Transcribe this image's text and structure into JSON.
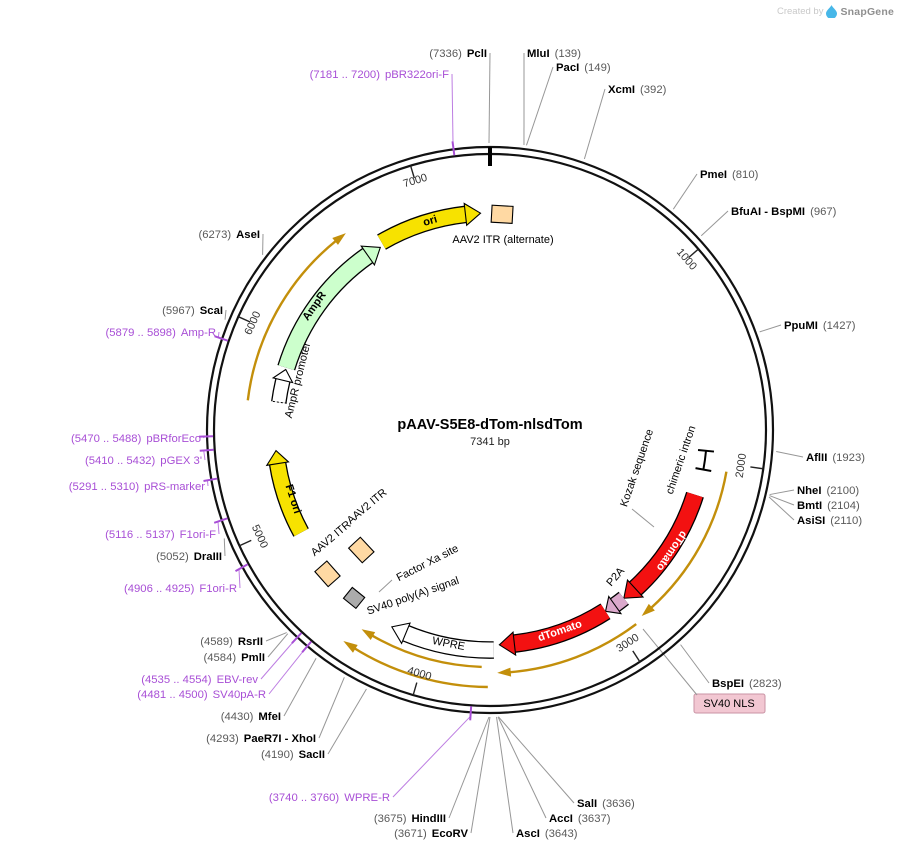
{
  "attribution": {
    "prefix": "Created by",
    "brand": "SnapGene"
  },
  "plasmid": {
    "name": "pAAV-S5E8-dTom-nlsdTom",
    "size": "7341 bp"
  },
  "axis_ticks": [
    "1000",
    "2000",
    "3000",
    "4000",
    "5000",
    "6000",
    "7000"
  ],
  "sites": [
    {
      "name": "PclI",
      "pos": "(7336)",
      "kind": "enzyme"
    },
    {
      "name": "MluI",
      "pos": "(139)",
      "kind": "enzyme"
    },
    {
      "name": "PacI",
      "pos": "(149)",
      "kind": "enzyme"
    },
    {
      "name": "XcmI",
      "pos": "(392)",
      "kind": "enzyme"
    },
    {
      "name": "PmeI",
      "pos": "(810)",
      "kind": "enzyme"
    },
    {
      "name": "BfuAI - BspMI",
      "pos": "(967)",
      "kind": "enzyme"
    },
    {
      "name": "PpuMI",
      "pos": "(1427)",
      "kind": "enzyme"
    },
    {
      "name": "AflII",
      "pos": "(1923)",
      "kind": "enzyme"
    },
    {
      "name": "NheI",
      "pos": "(2100)",
      "kind": "enzyme"
    },
    {
      "name": "BmtI",
      "pos": "(2104)",
      "kind": "enzyme"
    },
    {
      "name": "AsiSI",
      "pos": "(2110)",
      "kind": "enzyme"
    },
    {
      "name": "BspEI",
      "pos": "(2823)",
      "kind": "enzyme"
    },
    {
      "name": "SalI",
      "pos": "(3636)",
      "kind": "enzyme"
    },
    {
      "name": "AccI",
      "pos": "(3637)",
      "kind": "enzyme"
    },
    {
      "name": "AscI",
      "pos": "(3643)",
      "kind": "enzyme"
    },
    {
      "name": "EcoRV",
      "pos": "(3671)",
      "kind": "enzyme"
    },
    {
      "name": "HindIII",
      "pos": "(3675)",
      "kind": "enzyme"
    },
    {
      "name": "WPRE-R",
      "pos": "(3740 .. 3760)",
      "kind": "primer"
    },
    {
      "name": "SacII",
      "pos": "(4190)",
      "kind": "enzyme"
    },
    {
      "name": "PaeR7I - XhoI",
      "pos": "(4293)",
      "kind": "enzyme"
    },
    {
      "name": "MfeI",
      "pos": "(4430)",
      "kind": "enzyme"
    },
    {
      "name": "SV40pA-R",
      "pos": "(4481 .. 4500)",
      "kind": "primer"
    },
    {
      "name": "EBV-rev",
      "pos": "(4535 .. 4554)",
      "kind": "primer"
    },
    {
      "name": "PmlI",
      "pos": "(4584)",
      "kind": "enzyme"
    },
    {
      "name": "RsrII",
      "pos": "(4589)",
      "kind": "enzyme"
    },
    {
      "name": "F1ori-R",
      "pos": "(4906 .. 4925)",
      "kind": "primer"
    },
    {
      "name": "DraIII",
      "pos": "(5052)",
      "kind": "enzyme"
    },
    {
      "name": "F1ori-F",
      "pos": "(5116 .. 5137)",
      "kind": "primer"
    },
    {
      "name": "pRS-marker",
      "pos": "(5291 .. 5310)",
      "kind": "primer"
    },
    {
      "name": "pGEX 3'",
      "pos": "(5410 .. 5432)",
      "kind": "primer"
    },
    {
      "name": "pBRforEco",
      "pos": "(5470 .. 5488)",
      "kind": "primer"
    },
    {
      "name": "Amp-R",
      "pos": "(5879 .. 5898)",
      "kind": "primer"
    },
    {
      "name": "ScaI",
      "pos": "(5967)",
      "kind": "enzyme"
    },
    {
      "name": "AseI",
      "pos": "(6273)",
      "kind": "enzyme"
    },
    {
      "name": "pBR322ori-F",
      "pos": "(7181 .. 7200)",
      "kind": "primer"
    }
  ],
  "features": [
    {
      "label": "ori"
    },
    {
      "label": "AAV2 ITR (alternate)"
    },
    {
      "label": "AmpR"
    },
    {
      "label": "AmpR promoter"
    },
    {
      "label": "F1 ori"
    },
    {
      "label": "AAV2 ITR"
    },
    {
      "label": "AAV2 ITR"
    },
    {
      "label": "Factor Xa site"
    },
    {
      "label": "SV40 poly(A) signal"
    },
    {
      "label": "WPRE"
    },
    {
      "label": "dTomato"
    },
    {
      "label": "P2A"
    },
    {
      "label": "dTomato"
    },
    {
      "label": "chimeric intron"
    },
    {
      "label": "Kozak sequence"
    },
    {
      "label": "SV40 NLS"
    }
  ],
  "colors": {
    "enzyme_name": "#000000",
    "enzyme_pos": "#5a5a5a",
    "primer": "#a84fd6",
    "callout": "#979797",
    "primer_callout": "#bd7de2",
    "feature_yellow": "#f7e200",
    "feature_green": "#ccffcc",
    "feature_red": "#f31111",
    "feature_tan": "#ffd9a3",
    "feature_gray": "#ababab",
    "feature_plum": "#dba9cc",
    "nls_pink": "#f2c7d2",
    "gold": "#c38f0b"
  }
}
